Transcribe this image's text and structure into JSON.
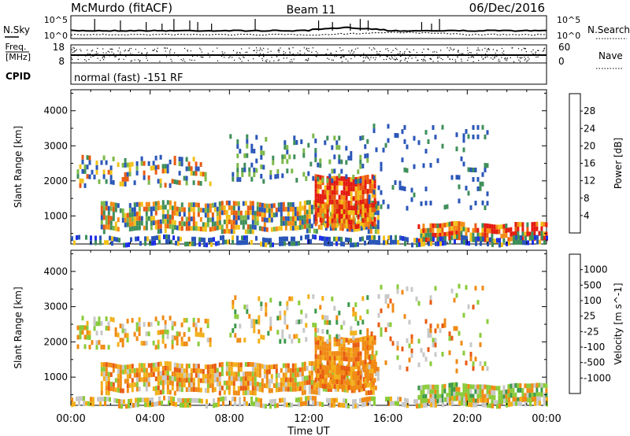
{
  "header": {
    "station": "McMurdo (fitACF)",
    "beam": "Beam 11",
    "date": "06/Dec/2016"
  },
  "strip": {
    "nsky_label": "N.Sky",
    "nsky_top": "10^5",
    "nsky_bottom": "10^0",
    "nsearch_label": "N.Search",
    "nsearch_top": "10^5",
    "nsearch_bottom": "10^0",
    "freq_label_1": "Freq.",
    "freq_label_2": "[MHz]",
    "freq_top": "18",
    "freq_bottom": "8",
    "nave_label": "Nave",
    "nave_top": "60",
    "nave_bottom": "0",
    "cpid_label": "CPID",
    "cpid_text": "normal (fast) -151 RF"
  },
  "chart_data": [
    {
      "type": "heatmap",
      "title": "",
      "xlabel": "Time UT",
      "ylabel": "Slant Range [km]",
      "x_ticks": [
        "00:00",
        "04:00",
        "08:00",
        "12:00",
        "16:00",
        "20:00",
        "00:00"
      ],
      "y_ticks": [
        "1000",
        "2000",
        "3000",
        "4000"
      ],
      "ylim": [
        200,
        4600
      ],
      "colorbar_label": "Power [dB]",
      "colorbar_ticks": [
        "4",
        "8",
        "12",
        "16",
        "20",
        "24",
        "28"
      ],
      "colorbar_colors": [
        "#1f2fe8",
        "#2a56b8",
        "#3f8f5a",
        "#7db84a",
        "#f2c21a",
        "#f58a14",
        "#e85a10",
        "#e41a10"
      ],
      "features": [
        {
          "name": "echo band near range",
          "time_hours": [
            1.5,
            15.5
          ],
          "range_km": [
            600,
            1400
          ],
          "dominant": "12-24 dB"
        },
        {
          "name": "intense patch",
          "time_hours": [
            12.5,
            15.5
          ],
          "range_km": [
            700,
            2100
          ],
          "dominant": "20-28 dB"
        },
        {
          "name": "late near-range echoes",
          "time_hours": [
            17.5,
            24
          ],
          "range_km": [
            300,
            800
          ],
          "dominant": "20-28 dB"
        },
        {
          "name": "far range echoes",
          "time_hours": [
            0.5,
            21
          ],
          "range_km": [
            1800,
            3500
          ],
          "dominant": "4-16 dB"
        }
      ]
    },
    {
      "type": "heatmap",
      "title": "",
      "xlabel": "Time UT",
      "ylabel": "Slant Range [km]",
      "x_ticks": [
        "00:00",
        "04:00",
        "08:00",
        "12:00",
        "16:00",
        "20:00",
        "00:00"
      ],
      "y_ticks": [
        "1000",
        "2000",
        "3000",
        "4000"
      ],
      "ylim": [
        200,
        4600
      ],
      "colorbar_label": "Velocity [m s^-1]",
      "colorbar_ticks": [
        "1000",
        "500",
        "100",
        "25",
        "-25",
        "-100",
        "-500",
        "-1000"
      ],
      "colorbar_colors": [
        "#1f3fb0",
        "#2f7a9a",
        "#3c9a4a",
        "#8acb3a",
        "#c8c8c8",
        "#f2b01a",
        "#f08a14",
        "#e85a10",
        "#e41a10"
      ],
      "features": [
        {
          "name": "echo band near range",
          "time_hours": [
            1.5,
            15.5
          ],
          "range_km": [
            600,
            1400
          ],
          "dominant": "-25 to -500"
        },
        {
          "name": "intense patch",
          "time_hours": [
            12.5,
            15.5
          ],
          "range_km": [
            700,
            2100
          ],
          "dominant": "-100 to -500"
        },
        {
          "name": "late near-range echoes",
          "time_hours": [
            17.5,
            24
          ],
          "range_km": [
            300,
            800
          ],
          "dominant": "25 to 500"
        },
        {
          "name": "far range echoes",
          "time_hours": [
            0.5,
            21
          ],
          "range_km": [
            1800,
            3500
          ],
          "dominant": "-100 to -500"
        }
      ]
    }
  ]
}
